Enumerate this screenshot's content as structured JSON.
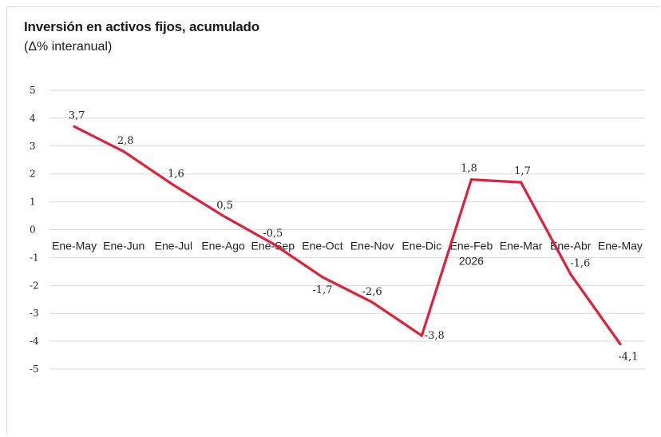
{
  "chart_data": {
    "type": "line",
    "title": "Inversión en activos fijos, acumulado",
    "subtitle": "(Δ% interanual)",
    "categories": [
      "Ene-May",
      "Ene-Jun",
      "Ene-Jul",
      "Ene-Ago",
      "Ene-Sep",
      "Ene-Oct",
      "Ene-Nov",
      "Ene-Dic",
      "Ene-Feb",
      "Ene-Mar",
      "Ene-Abr",
      "Ene-May"
    ],
    "category_sublabels": [
      "",
      "",
      "",
      "",
      "",
      "",
      "",
      "",
      "2026",
      "",
      "",
      ""
    ],
    "series": [
      {
        "values": [
          3.7,
          2.8,
          1.6,
          0.5,
          -0.5,
          -1.7,
          -2.6,
          -3.8,
          1.8,
          1.7,
          -1.6,
          -4.1
        ]
      }
    ],
    "data_labels": [
      "3,7",
      "2,8",
      "1,6",
      "0,5",
      "-0,5",
      "-1,7",
      "-2,6",
      "-3,8",
      "1,8",
      "1,7",
      "-1,6",
      "-4,1"
    ],
    "yticks": [
      5,
      4,
      3,
      2,
      1,
      0,
      -1,
      -2,
      -3,
      -4,
      -5
    ],
    "ylim": [
      -5,
      5
    ],
    "grid": true,
    "line_color": "#e0203a",
    "grid_color": "#d9d9d9"
  }
}
